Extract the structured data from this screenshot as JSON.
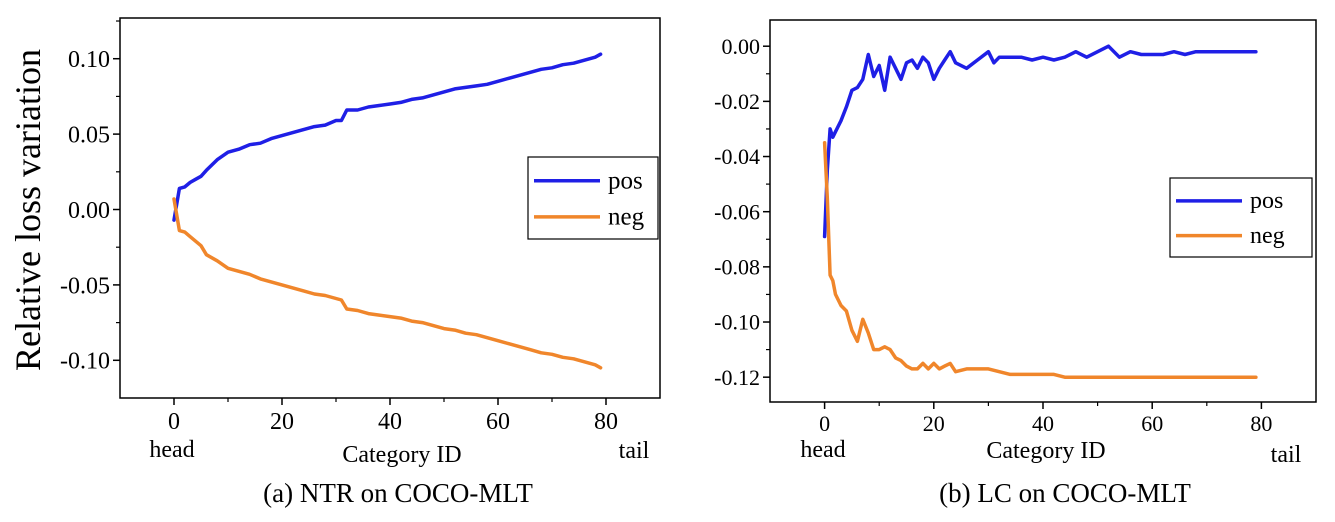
{
  "ylabel_shared": "Relative loss variation",
  "colors": {
    "pos": "#1f1fe6",
    "neg": "#f0862b"
  },
  "chart_data": [
    {
      "type": "line",
      "caption": "(a) NTR on COCO-MLT",
      "xlabel": "Category ID",
      "x_end_labels": {
        "left": "head",
        "right": "tail"
      },
      "xlim": [
        -10,
        90
      ],
      "ylim": [
        -0.125,
        0.127
      ],
      "xticks": [
        0,
        20,
        40,
        60,
        80
      ],
      "xtick_labels": [
        "0",
        "20",
        "40",
        "60",
        "80"
      ],
      "yticks": [
        -0.1,
        -0.05,
        0.0,
        0.05,
        0.1
      ],
      "ytick_labels": [
        "-0.10",
        "-0.05",
        "0.00",
        "0.05",
        "0.10"
      ],
      "legend": {
        "position": "right",
        "entries": [
          "pos",
          "neg"
        ]
      },
      "series": [
        {
          "name": "pos",
          "x": [
            0,
            1,
            2,
            3,
            4,
            5,
            6,
            8,
            10,
            12,
            14,
            16,
            18,
            20,
            22,
            24,
            26,
            28,
            30,
            31,
            32,
            34,
            36,
            38,
            40,
            42,
            44,
            46,
            48,
            50,
            52,
            54,
            56,
            58,
            60,
            62,
            64,
            66,
            68,
            70,
            72,
            74,
            76,
            78,
            79
          ],
          "y": [
            -0.007,
            0.014,
            0.015,
            0.018,
            0.02,
            0.022,
            0.026,
            0.033,
            0.038,
            0.04,
            0.043,
            0.044,
            0.047,
            0.049,
            0.051,
            0.053,
            0.055,
            0.056,
            0.059,
            0.059,
            0.066,
            0.066,
            0.068,
            0.069,
            0.07,
            0.071,
            0.073,
            0.074,
            0.076,
            0.078,
            0.08,
            0.081,
            0.082,
            0.083,
            0.085,
            0.087,
            0.089,
            0.091,
            0.093,
            0.094,
            0.096,
            0.097,
            0.099,
            0.101,
            0.103
          ]
        },
        {
          "name": "neg",
          "x": [
            0,
            1,
            2,
            3,
            4,
            5,
            6,
            8,
            10,
            12,
            14,
            16,
            18,
            20,
            22,
            24,
            26,
            28,
            30,
            31,
            32,
            34,
            36,
            38,
            40,
            42,
            44,
            46,
            48,
            50,
            52,
            54,
            56,
            58,
            60,
            62,
            64,
            66,
            68,
            70,
            72,
            74,
            76,
            78,
            79
          ],
          "y": [
            0.007,
            -0.014,
            -0.015,
            -0.018,
            -0.021,
            -0.024,
            -0.03,
            -0.034,
            -0.039,
            -0.041,
            -0.043,
            -0.046,
            -0.048,
            -0.05,
            -0.052,
            -0.054,
            -0.056,
            -0.057,
            -0.059,
            -0.06,
            -0.066,
            -0.067,
            -0.069,
            -0.07,
            -0.071,
            -0.072,
            -0.074,
            -0.075,
            -0.077,
            -0.079,
            -0.08,
            -0.082,
            -0.083,
            -0.085,
            -0.087,
            -0.089,
            -0.091,
            -0.093,
            -0.095,
            -0.096,
            -0.098,
            -0.099,
            -0.101,
            -0.103,
            -0.105
          ]
        }
      ]
    },
    {
      "type": "line",
      "caption": "(b) LC on COCO-MLT",
      "xlabel": "Category ID",
      "x_end_labels": {
        "left": "head",
        "right": "tail"
      },
      "xlim": [
        -10,
        90
      ],
      "ylim": [
        -0.129,
        0.0095
      ],
      "xticks": [
        0,
        20,
        40,
        60,
        80
      ],
      "xtick_labels": [
        "0",
        "20",
        "40",
        "60",
        "80"
      ],
      "yticks": [
        -0.12,
        -0.1,
        -0.08,
        -0.06,
        -0.04,
        -0.02,
        0.0
      ],
      "ytick_labels": [
        "-0.12",
        "-0.10",
        "-0.08",
        "-0.06",
        "-0.04",
        "-0.02",
        "0.00"
      ],
      "legend": {
        "position": "right",
        "entries": [
          "pos",
          "neg"
        ]
      },
      "series": [
        {
          "name": "pos",
          "x": [
            0,
            0.5,
            1,
            1.5,
            2,
            3,
            4,
            5,
            6,
            7,
            8,
            9,
            10,
            11,
            12,
            13,
            14,
            15,
            16,
            17,
            18,
            19,
            20,
            21,
            22,
            23,
            24,
            26,
            28,
            30,
            31,
            32,
            34,
            36,
            38,
            40,
            42,
            44,
            46,
            48,
            50,
            52,
            54,
            56,
            58,
            60,
            62,
            64,
            66,
            68,
            70,
            72,
            74,
            76,
            78,
            79
          ],
          "y": [
            -0.069,
            -0.045,
            -0.03,
            -0.033,
            -0.031,
            -0.027,
            -0.022,
            -0.016,
            -0.015,
            -0.012,
            -0.003,
            -0.011,
            -0.007,
            -0.016,
            -0.004,
            -0.008,
            -0.012,
            -0.006,
            -0.005,
            -0.008,
            -0.004,
            -0.006,
            -0.012,
            -0.008,
            -0.005,
            -0.002,
            -0.006,
            -0.008,
            -0.005,
            -0.002,
            -0.006,
            -0.004,
            -0.004,
            -0.004,
            -0.005,
            -0.004,
            -0.005,
            -0.004,
            -0.002,
            -0.004,
            -0.002,
            0.0,
            -0.004,
            -0.002,
            -0.003,
            -0.003,
            -0.003,
            -0.002,
            -0.003,
            -0.002,
            -0.002,
            -0.002,
            -0.002,
            -0.002,
            -0.002,
            -0.002
          ]
        },
        {
          "name": "neg",
          "x": [
            0,
            0.5,
            1,
            1.5,
            2,
            3,
            4,
            5,
            6,
            7,
            8,
            9,
            10,
            11,
            12,
            13,
            14,
            15,
            16,
            17,
            18,
            19,
            20,
            21,
            22,
            23,
            24,
            26,
            28,
            30,
            32,
            34,
            36,
            38,
            40,
            42,
            44,
            46,
            48,
            50,
            52,
            54,
            56,
            58,
            60,
            62,
            64,
            66,
            68,
            70,
            72,
            74,
            76,
            78,
            79
          ],
          "y": [
            -0.035,
            -0.055,
            -0.083,
            -0.085,
            -0.09,
            -0.094,
            -0.096,
            -0.103,
            -0.107,
            -0.099,
            -0.104,
            -0.11,
            -0.11,
            -0.109,
            -0.11,
            -0.113,
            -0.114,
            -0.116,
            -0.117,
            -0.117,
            -0.115,
            -0.117,
            -0.115,
            -0.117,
            -0.116,
            -0.115,
            -0.118,
            -0.117,
            -0.117,
            -0.117,
            -0.118,
            -0.119,
            -0.119,
            -0.119,
            -0.119,
            -0.119,
            -0.12,
            -0.12,
            -0.12,
            -0.12,
            -0.12,
            -0.12,
            -0.12,
            -0.12,
            -0.12,
            -0.12,
            -0.12,
            -0.12,
            -0.12,
            -0.12,
            -0.12,
            -0.12,
            -0.12,
            -0.12,
            -0.12
          ]
        }
      ]
    }
  ]
}
